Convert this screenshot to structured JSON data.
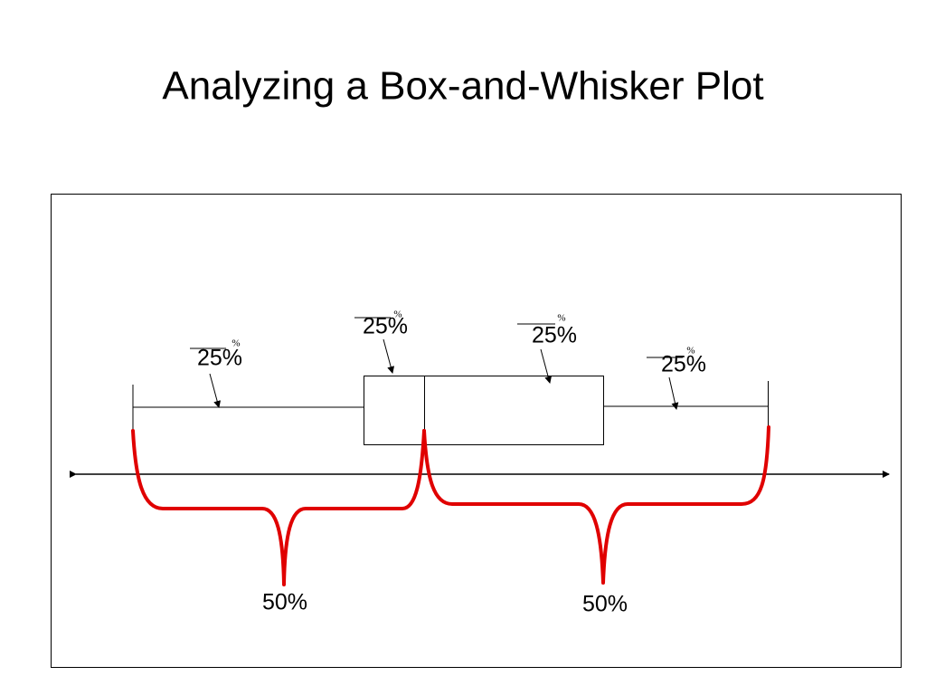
{
  "title": "Analyzing a Box-and-Whisker Plot",
  "quarter_labels": [
    {
      "text": "25%",
      "mark": "%"
    },
    {
      "text": "25%",
      "mark": "%"
    },
    {
      "text": "25%",
      "mark": "%"
    },
    {
      "text": "25%",
      "mark": "%"
    }
  ],
  "half_labels": [
    "50%",
    "50%"
  ]
}
